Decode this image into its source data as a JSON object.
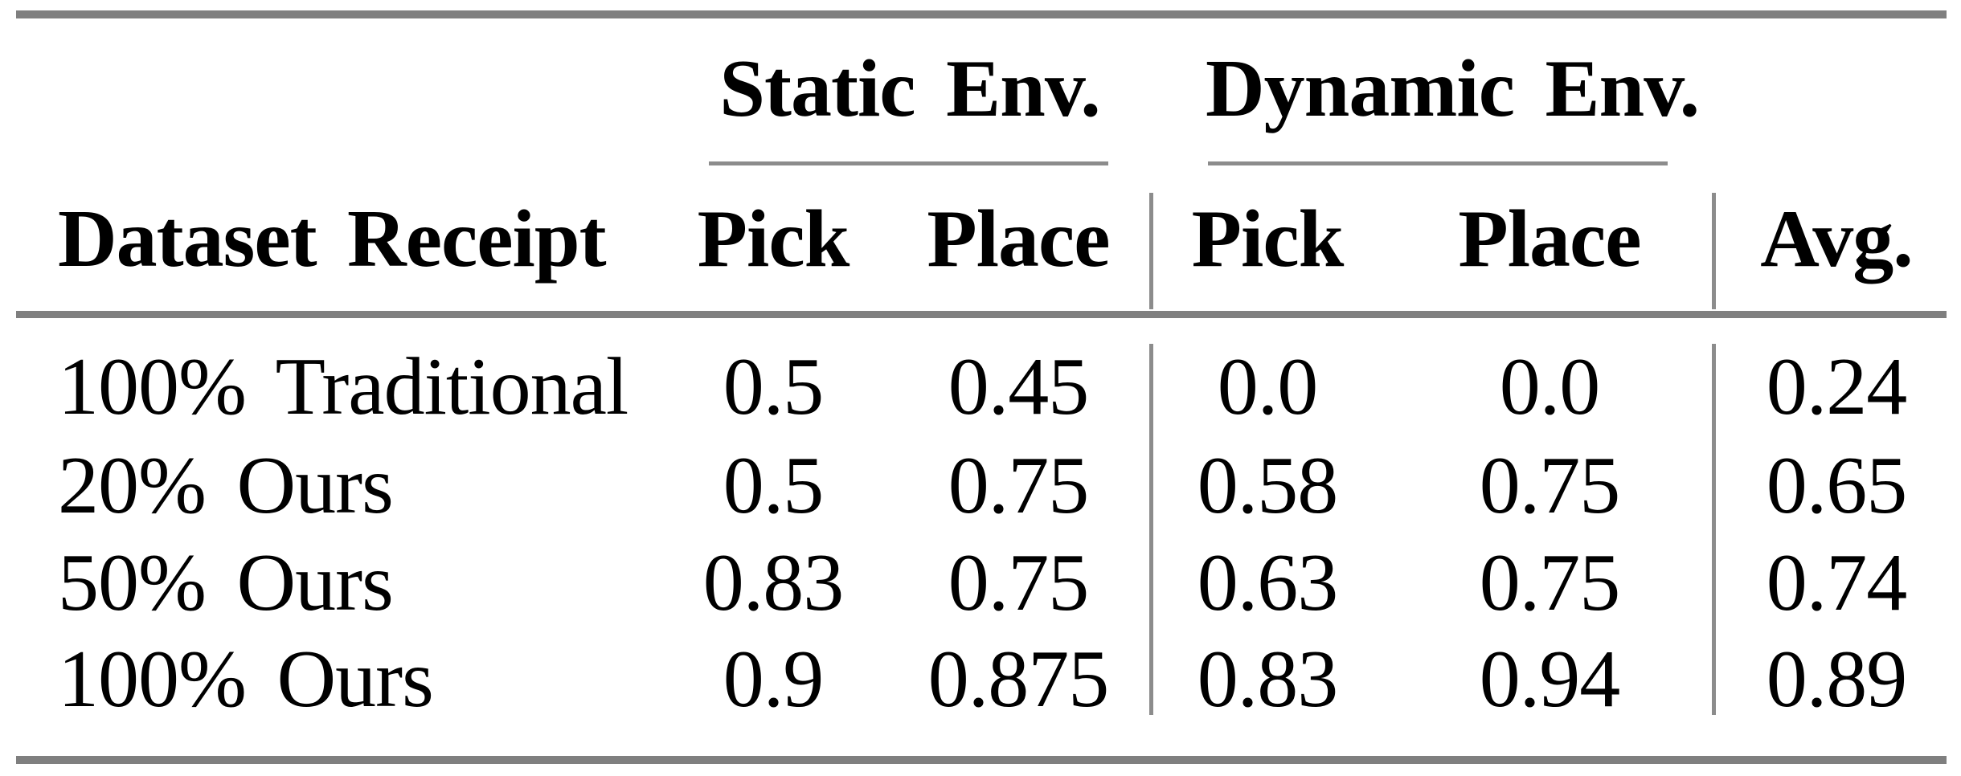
{
  "table": {
    "groups": [
      {
        "label": "Static Env."
      },
      {
        "label": "Dynamic Env."
      }
    ],
    "header": {
      "row_label": "Dataset Receipt",
      "static_pick": "Pick",
      "static_place": "Place",
      "dynamic_pick": "Pick",
      "dynamic_place": "Place",
      "avg": "Avg."
    },
    "rows": [
      {
        "label": "100% Traditional",
        "values": [
          "0.5",
          "0.45",
          "0.0",
          "0.0",
          "0.24"
        ]
      },
      {
        "label": "20% Ours",
        "values": [
          "0.5",
          "0.75",
          "0.58",
          "0.75",
          "0.65"
        ]
      },
      {
        "label": "50% Ours",
        "values": [
          "0.83",
          "0.75",
          "0.63",
          "0.75",
          "0.74"
        ]
      },
      {
        "label": "100% Ours",
        "values": [
          "0.9",
          "0.875",
          "0.83",
          "0.94",
          "0.89"
        ]
      }
    ],
    "colors": {
      "rule_thick": "#7f7f7f",
      "rule_thin": "#8c8c8c",
      "text": "#000000",
      "background": "#ffffff"
    }
  },
  "chart_data": {
    "type": "table",
    "columns": [
      "Dataset Receipt",
      "Static Env. Pick",
      "Static Env. Place",
      "Dynamic Env. Pick",
      "Dynamic Env. Place",
      "Avg."
    ],
    "rows": [
      [
        "100% Traditional",
        0.5,
        0.45,
        0.0,
        0.0,
        0.24
      ],
      [
        "20% Ours",
        0.5,
        0.75,
        0.58,
        0.75,
        0.65
      ],
      [
        "50% Ours",
        0.83,
        0.75,
        0.63,
        0.75,
        0.74
      ],
      [
        "100% Ours",
        0.9,
        0.875,
        0.83,
        0.94,
        0.89
      ]
    ]
  }
}
